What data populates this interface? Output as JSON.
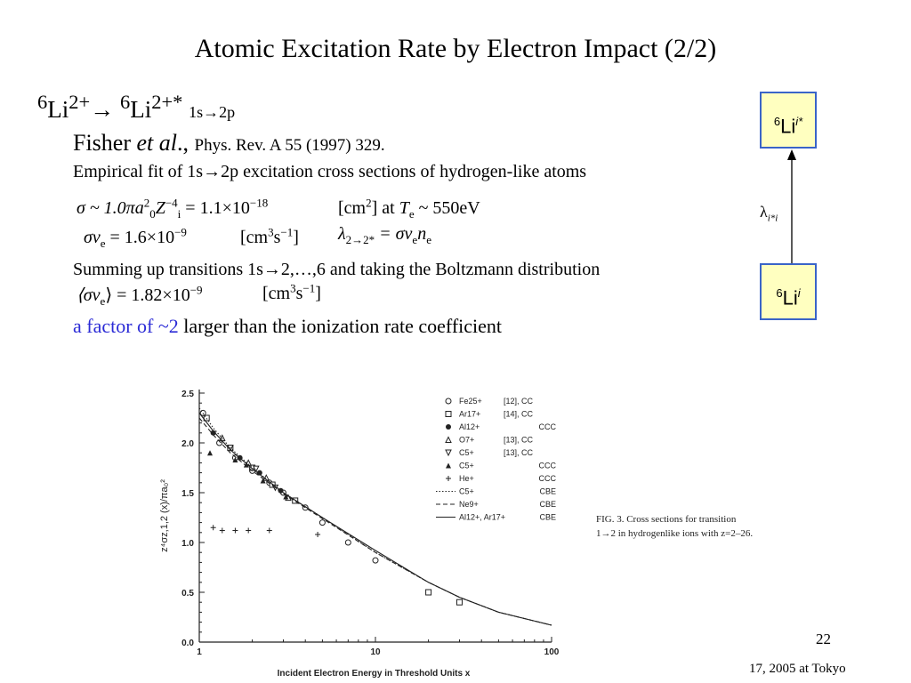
{
  "slide": {
    "title": "Atomic Excitation Rate by Electron Impact (2/2)",
    "page_number": "22",
    "footer": "17, 2005 at Tokyo"
  },
  "reaction": {
    "iso1": "6",
    "el1": "Li",
    "ch1": "2+",
    "arrow": "→ ",
    "iso2": "6",
    "el2": "Li",
    "ch2": "2+*",
    "transition": "1s→2p"
  },
  "reference": {
    "author": "Fisher ",
    "etal": "et al",
    "punct": "., ",
    "journal": "Phys. Rev. A 55 (1997) 329."
  },
  "description": "Empirical fit of 1s→2p excitation cross sections of hydrogen-like atoms",
  "equations": {
    "eq1_lhs": "σ ~ 1.0πa",
    "eq1_a_sup": "2",
    "eq1_a_sub": "0",
    "eq1_Z": "Z",
    "eq1_Z_sup": "−4",
    "eq1_Z_sub": "i",
    "eq1_rhs": " = 1.1×10",
    "eq1_exp": "−18",
    "eq1_unit_a": "[cm",
    "eq1_unit_sup": "2",
    "eq1_unit_b": "] at ",
    "eq1_T": "T",
    "eq1_T_sub": "e",
    "eq1_tail": " ~ 550eV",
    "eq2_lhs": "σv",
    "eq2_sub": "e",
    "eq2_rhs": " = 1.6×10",
    "eq2_exp": "−9",
    "eq2_unit_a": "[cm",
    "eq2_unit_sup": "3",
    "eq2_unit_b": "s",
    "eq2_unit_sup2": "−1",
    "eq2_unit_c": "]",
    "lam": "λ",
    "lam_sub": "2→2*",
    "lam_eq": " = σv",
    "lam_v_sub": "e",
    "lam_n": "n",
    "lam_n_sub": "e",
    "eq3_lhs": "⟨σv",
    "eq3_sub": "e",
    "eq3_rhs": "⟩ = 1.82×10",
    "eq3_exp": "−9",
    "eq3_unit_a": "[cm",
    "eq3_unit_sup": "3",
    "eq3_unit_b": "s",
    "eq3_unit_sup2": "−1",
    "eq3_unit_c": "]"
  },
  "summing_text": "Summing up transitions 1s→2,…,6 and taking the Boltzmann distribution",
  "factor": {
    "highlight": "a factor of ~2",
    "rest": " larger than the ionization rate coefficient"
  },
  "level_diagram": {
    "upper": {
      "iso": "6",
      "el": "Li",
      "sup": "i*"
    },
    "lower": {
      "iso": "6",
      "el": "Li",
      "sup": "i"
    },
    "rate": {
      "sym": "λ",
      "sub": "i*i"
    }
  },
  "figure_caption": "FIG. 3. Cross sections for transition 1→2 in hydrogenlike ions with z=2–26.",
  "chart_data": {
    "type": "scatter",
    "xlabel": "Incident Electron Energy in Threshold Units x",
    "ylabel": "z⁴σz,1,2 (x)/πa₀²",
    "x_scale": "log",
    "xlim": [
      1,
      100
    ],
    "ylim": [
      0,
      2.5
    ],
    "x_ticks": [
      1,
      10,
      100
    ],
    "x_tick_labels": [
      "1",
      "10",
      "100"
    ],
    "y_ticks": [
      0,
      0.5,
      1.0,
      1.5,
      2.0,
      2.5
    ],
    "y_tick_labels": [
      "0.0",
      "0.5",
      "1.0",
      "1.5",
      "2.0",
      "2.5"
    ],
    "legend_position": "top-right",
    "series": [
      {
        "name": "Fe25+",
        "ref": "[12], CC",
        "marker": "circle-open",
        "points": [
          [
            1.05,
            2.3
          ],
          [
            1.3,
            2.0
          ],
          [
            1.6,
            1.85
          ],
          [
            2.0,
            1.72
          ],
          [
            2.5,
            1.6
          ],
          [
            3.0,
            1.5
          ],
          [
            4.0,
            1.35
          ],
          [
            5.0,
            1.2
          ],
          [
            7.0,
            1.0
          ],
          [
            10,
            0.82
          ]
        ]
      },
      {
        "name": "Ar17+",
        "ref": "[14], CC",
        "marker": "square-open",
        "points": [
          [
            1.1,
            2.25
          ],
          [
            1.5,
            1.95
          ],
          [
            2.0,
            1.75
          ],
          [
            2.6,
            1.58
          ],
          [
            3.5,
            1.42
          ],
          [
            20,
            0.5
          ],
          [
            30,
            0.4
          ]
        ]
      },
      {
        "name": "Al12+",
        "ref": "",
        "note": "CCC",
        "marker": "circle-filled",
        "points": [
          [
            1.2,
            2.1
          ],
          [
            1.7,
            1.85
          ],
          [
            2.2,
            1.7
          ],
          [
            2.9,
            1.52
          ]
        ]
      },
      {
        "name": "O7+",
        "ref": "[13], CC",
        "marker": "triangle-open",
        "points": [
          [
            1.35,
            2.05
          ],
          [
            1.9,
            1.8
          ],
          [
            2.4,
            1.65
          ],
          [
            3.2,
            1.45
          ]
        ]
      },
      {
        "name": "C5+",
        "ref": "[13], CC",
        "marker": "triangle-down-open",
        "points": [
          [
            1.5,
            1.95
          ],
          [
            2.1,
            1.74
          ],
          [
            2.7,
            1.55
          ]
        ]
      },
      {
        "name": "C5+",
        "ref": "",
        "note": "CCC",
        "marker": "triangle-filled",
        "points": [
          [
            1.15,
            1.9
          ],
          [
            1.6,
            1.83
          ],
          [
            1.85,
            1.78
          ],
          [
            2.3,
            1.62
          ],
          [
            3.1,
            1.46
          ]
        ]
      },
      {
        "name": "He+",
        "ref": "",
        "note": "CCC",
        "marker": "plus",
        "points": [
          [
            1.2,
            1.15
          ],
          [
            1.35,
            1.12
          ],
          [
            1.6,
            1.12
          ],
          [
            1.9,
            1.12
          ],
          [
            2.5,
            1.12
          ],
          [
            4.7,
            1.08
          ]
        ]
      },
      {
        "name": "C5+",
        "ref": "",
        "note": "CBE",
        "marker": "line-dotted",
        "points": [
          [
            1.0,
            2.35
          ],
          [
            1.2,
            2.15
          ],
          [
            1.5,
            1.95
          ],
          [
            2,
            1.75
          ],
          [
            3,
            1.5
          ],
          [
            5,
            1.25
          ],
          [
            10,
            0.9
          ],
          [
            20,
            0.6
          ],
          [
            30,
            0.45
          ],
          [
            50,
            0.3
          ],
          [
            100,
            0.17
          ]
        ]
      },
      {
        "name": "Ne9+",
        "ref": "",
        "note": "CBE",
        "marker": "line-dashed",
        "points": [
          [
            1.0,
            2.25
          ],
          [
            1.2,
            2.08
          ],
          [
            1.5,
            1.9
          ],
          [
            2,
            1.72
          ],
          [
            3,
            1.49
          ],
          [
            5,
            1.24
          ],
          [
            10,
            0.9
          ],
          [
            20,
            0.6
          ],
          [
            30,
            0.45
          ],
          [
            50,
            0.3
          ],
          [
            100,
            0.17
          ]
        ]
      },
      {
        "name": "Al12+, Ar17+",
        "ref": "",
        "note": "CBE",
        "marker": "line-solid",
        "points": [
          [
            1.0,
            2.3
          ],
          [
            1.2,
            2.12
          ],
          [
            1.5,
            1.93
          ],
          [
            2,
            1.74
          ],
          [
            3,
            1.5
          ],
          [
            5,
            1.25
          ],
          [
            10,
            0.92
          ],
          [
            20,
            0.6
          ],
          [
            30,
            0.45
          ],
          [
            50,
            0.3
          ],
          [
            100,
            0.17
          ]
        ]
      }
    ]
  }
}
